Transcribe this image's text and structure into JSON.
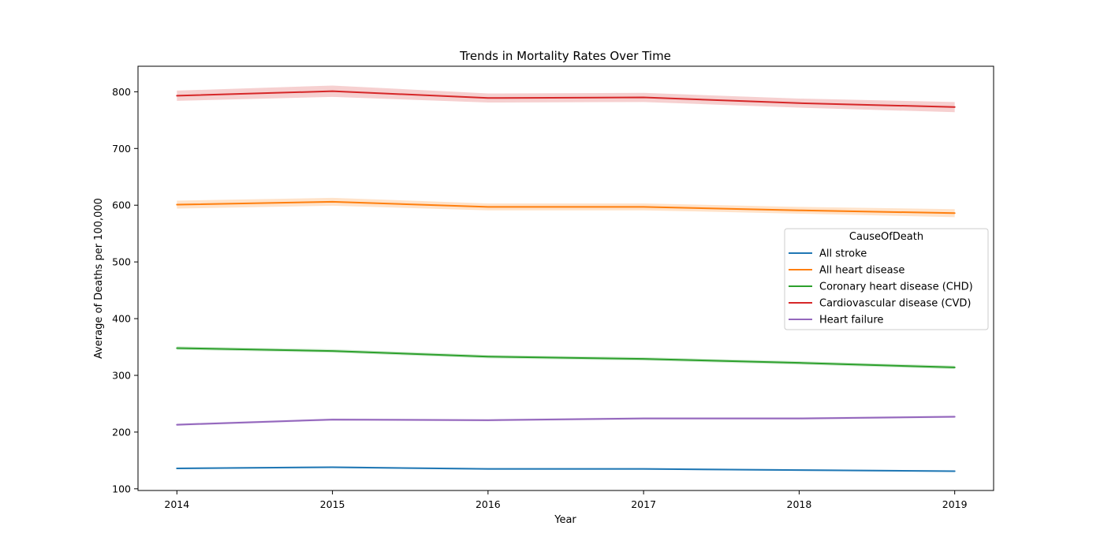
{
  "chart_data": {
    "type": "line",
    "title": "Trends in Mortality Rates Over Time",
    "xlabel": "Year",
    "ylabel": "Average of Deaths per 100,000",
    "x": [
      2014,
      2015,
      2016,
      2017,
      2018,
      2019
    ],
    "x_tick_labels": [
      "2014",
      "2015",
      "2016",
      "2017",
      "2018",
      "2019"
    ],
    "xlim": [
      2013.75,
      2019.25
    ],
    "ylim": [
      97,
      845
    ],
    "y_ticks": [
      100,
      200,
      300,
      400,
      500,
      600,
      700,
      800
    ],
    "y_tick_labels": [
      "100",
      "200",
      "300",
      "400",
      "500",
      "600",
      "700",
      "800"
    ],
    "grid": false,
    "confidence_band": true,
    "legend": {
      "title": "CauseOfDeath",
      "placement": "center-right"
    },
    "series": [
      {
        "name": "All stroke",
        "color": "#1f77b4",
        "values": [
          136,
          138,
          135,
          135,
          133,
          131
        ],
        "band": [
          1.5,
          1.5,
          1.5,
          1.5,
          1.5,
          1.5
        ]
      },
      {
        "name": "All heart disease",
        "color": "#ff7f0e",
        "values": [
          601,
          606,
          597,
          597,
          591,
          586
        ],
        "band": [
          7,
          7,
          6,
          6,
          6,
          7
        ]
      },
      {
        "name": "Coronary heart disease (CHD)",
        "color": "#2ca02c",
        "values": [
          348,
          343,
          333,
          329,
          322,
          314
        ],
        "band": [
          3,
          3,
          3,
          3,
          3,
          3
        ]
      },
      {
        "name": "Cardiovascular disease (CVD)",
        "color": "#d62728",
        "values": [
          793,
          801,
          789,
          790,
          780,
          773
        ],
        "band": [
          9,
          10,
          8,
          8,
          8,
          9
        ]
      },
      {
        "name": "Heart failure",
        "color": "#9467bd",
        "values": [
          213,
          222,
          221,
          224,
          224,
          227
        ],
        "band": [
          2,
          2,
          2,
          2,
          2,
          2
        ]
      }
    ]
  }
}
